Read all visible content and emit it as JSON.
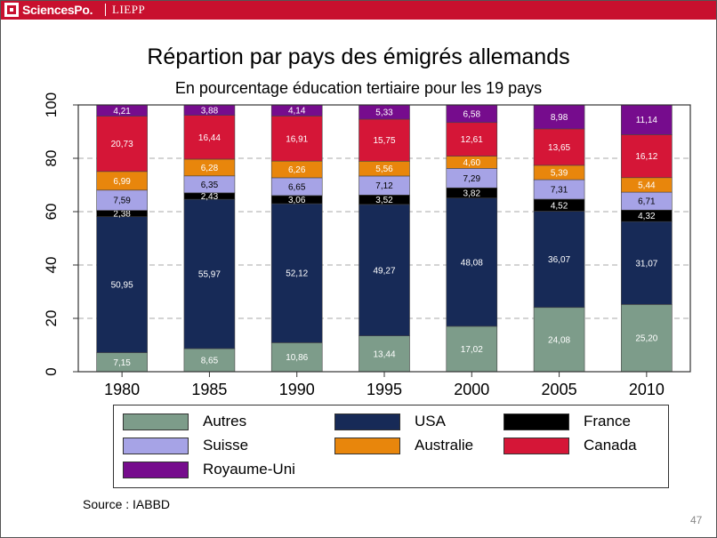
{
  "header": {
    "logo_text": "SciencesPo.",
    "lab": "LIEPP"
  },
  "slide": {
    "source": "Source : IABBD",
    "page_number": "47"
  },
  "colors": {
    "Autres": "#7d9c8a",
    "USA": "#172a57",
    "France": "#000000",
    "Suisse": "#a6a3e6",
    "Australie": "#e8860c",
    "Canada": "#d51637",
    "Royaume-Uni": "#760c8d"
  },
  "chart_data": {
    "type": "bar",
    "stacked": true,
    "title": "Répartion par pays des émigrés allemands",
    "subtitle": "En pourcentage éducation tertiaire pour les 19 pays",
    "categories": [
      "1980",
      "1985",
      "1990",
      "1995",
      "2000",
      "2005",
      "2010"
    ],
    "ylim": [
      0,
      100
    ],
    "yticks": [
      "0",
      "20",
      "40",
      "60",
      "80",
      "100"
    ],
    "grid": true,
    "legend_position": "bottom",
    "series": [
      {
        "name": "Autres",
        "values": [
          7.15,
          8.65,
          10.86,
          13.44,
          17.02,
          24.08,
          25.2
        ],
        "labels": [
          "7,15",
          "8,65",
          "10,86",
          "13,44",
          "17,02",
          "24,08",
          "25,20"
        ]
      },
      {
        "name": "USA",
        "values": [
          50.95,
          55.97,
          52.12,
          49.27,
          48.08,
          36.07,
          31.07
        ],
        "labels": [
          "50,95",
          "55,97",
          "52,12",
          "49,27",
          "48,08",
          "36,07",
          "31,07"
        ]
      },
      {
        "name": "France",
        "values": [
          2.38,
          2.43,
          3.06,
          3.52,
          3.82,
          4.52,
          4.32
        ],
        "labels": [
          "2,38",
          "2,43",
          "3,06",
          "3,52",
          "3,82",
          "4,52",
          "4,32"
        ]
      },
      {
        "name": "Suisse",
        "values": [
          7.59,
          6.35,
          6.65,
          7.12,
          7.29,
          7.31,
          6.71
        ],
        "labels": [
          "7,59",
          "6,35",
          "6,65",
          "7,12",
          "7,29",
          "7,31",
          "6,71"
        ]
      },
      {
        "name": "Australie",
        "values": [
          6.99,
          6.28,
          6.26,
          5.56,
          4.6,
          5.39,
          5.44
        ],
        "labels": [
          "6,99",
          "6,28",
          "6,26",
          "5,56",
          "4,60",
          "5,39",
          "5,44"
        ]
      },
      {
        "name": "Canada",
        "values": [
          20.73,
          16.44,
          16.91,
          15.75,
          12.61,
          13.65,
          16.12
        ],
        "labels": [
          "20,73",
          "16,44",
          "16,91",
          "15,75",
          "12,61",
          "13,65",
          "16,12"
        ]
      },
      {
        "name": "Royaume-Uni",
        "values": [
          4.21,
          3.88,
          4.14,
          5.33,
          6.58,
          8.98,
          11.14
        ],
        "labels": [
          "4,21",
          "3,88",
          "4,14",
          "5,33",
          "6,58",
          "8,98",
          "11,14"
        ]
      }
    ]
  }
}
